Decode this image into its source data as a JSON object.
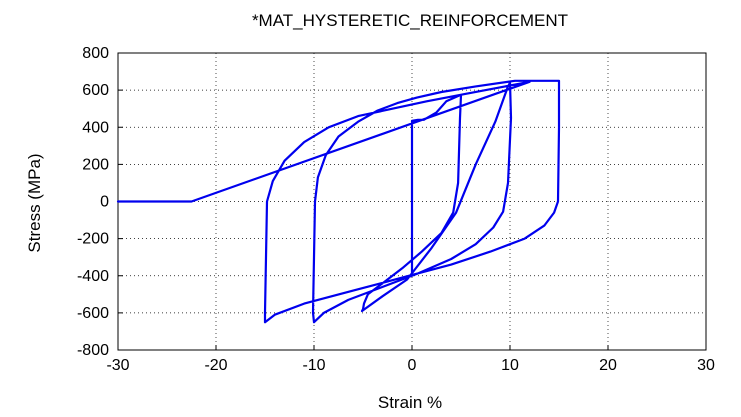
{
  "chart_data": {
    "type": "line",
    "title": "*MAT_HYSTERETIC_REINFORCEMENT",
    "xlabel": "Strain %",
    "ylabel": "Stress (MPa)",
    "xlim": [
      -30,
      30
    ],
    "ylim": [
      -800,
      800
    ],
    "xticks": [
      "-30",
      "-20",
      "-10",
      "0",
      "10",
      "20",
      "30"
    ],
    "yticks": [
      "800",
      "600",
      "400",
      "200",
      "0",
      "-200",
      "-400",
      "-600",
      "-800"
    ],
    "grid": true,
    "legend": "none",
    "line_color": "#0000ee",
    "series": [
      {
        "x": [
          0,
          0,
          0,
          0.6,
          1.2,
          2.5,
          3.5,
          5,
          4.9,
          4.7,
          4.2,
          3.0,
          1.0,
          -1.0,
          -3.0,
          -4.5,
          -4.9,
          -5.0,
          -5.1,
          -3,
          -0.5,
          2,
          4.5,
          6.5,
          8.5,
          9.8,
          10,
          10.1,
          9.8,
          9.3,
          8.3,
          6.5,
          4.0,
          0.5,
          -3.0,
          -6.5,
          -9.0,
          -10,
          -10.1,
          -9.9,
          -9.6,
          -8.8,
          -7.5,
          -5.5,
          -3.5,
          -1.5,
          0.5,
          3.0,
          6.5,
          10.5,
          11.5,
          15,
          15,
          14.9,
          14.5,
          13.5,
          11.5,
          8.0,
          4.0,
          -1.0,
          -6.0,
          -11.0,
          -14.0,
          -15.0,
          -15.0,
          -14.8,
          -14.2,
          -13.0,
          -11.0,
          -8.5,
          -5.5,
          -2.0,
          1.5,
          5.5,
          9.5,
          12.0,
          -22.5,
          -30
        ],
        "y": [
          0,
          -400,
          435,
          440,
          440,
          480,
          540,
          575,
          450,
          100,
          -60,
          -170,
          -270,
          -360,
          -440,
          -500,
          -550,
          -580,
          -590,
          -510,
          -420,
          -250,
          -60,
          200,
          430,
          620,
          640,
          450,
          100,
          -55,
          -140,
          -230,
          -310,
          -390,
          -460,
          -530,
          -600,
          -650,
          -600,
          0,
          130,
          250,
          350,
          430,
          490,
          530,
          560,
          590,
          620,
          650,
          650,
          650,
          400,
          0,
          -60,
          -130,
          -200,
          -270,
          -340,
          -410,
          -480,
          -550,
          -610,
          -650,
          -600,
          0,
          110,
          220,
          320,
          400,
          460,
          500,
          540,
          580,
          620,
          645,
          0,
          0
        ]
      }
    ]
  }
}
